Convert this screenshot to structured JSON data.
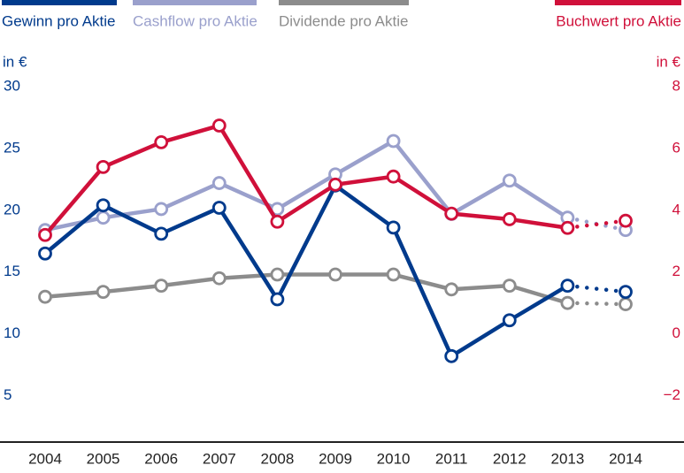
{
  "chart_data": {
    "type": "line",
    "categories": [
      "2004",
      "2005",
      "2006",
      "2007",
      "2008",
      "2009",
      "2010",
      "2011",
      "2012",
      "2013",
      "2014"
    ],
    "series": [
      {
        "name": "Dividende pro Aktie",
        "color": "#8c8c8c",
        "axis": "y",
        "values": [
          13,
          13.4,
          13.9,
          14.5,
          14.8,
          14.8,
          14.8,
          13.6,
          13.9,
          12.5,
          12.4
        ]
      },
      {
        "name": "Cashflow pro Aktie",
        "color": "#9aa0cc",
        "axis": "y",
        "values": [
          18.4,
          19.4,
          20.1,
          22.2,
          20.1,
          22.9,
          25.6,
          19.7,
          22.4,
          19.4,
          18.4
        ]
      },
      {
        "name": "Gewinn pro Aktie",
        "color": "#003a8c",
        "axis": "y",
        "values": [
          16.5,
          20.4,
          18.1,
          20.2,
          12.8,
          22,
          18.6,
          8.2,
          11.1,
          13.9,
          13.4
        ]
      },
      {
        "name": "Buchwert pro Aktie",
        "color": "#d0103a",
        "axis": "y2",
        "values": [
          3.2,
          5.4,
          6.2,
          6.74,
          3.63,
          4.83,
          5.09,
          3.89,
          3.71,
          3.43,
          3.66
        ]
      }
    ],
    "legend_order": [
      2,
      1,
      0,
      3
    ],
    "dotted_last_segment": true,
    "ylabel": "in €",
    "y2label": "in €",
    "ylim": [
      1.25,
      31
    ],
    "yticks": [
      30,
      25,
      20,
      15,
      10,
      5
    ],
    "y2lim": [
      -3.5,
      8.4
    ],
    "y2ticks": [
      8,
      6,
      4,
      2,
      0,
      {
        "value": -2,
        "label": "−2"
      }
    ],
    "ycolor": "#003a8c",
    "y2color": "#d0103a",
    "grid": false
  }
}
